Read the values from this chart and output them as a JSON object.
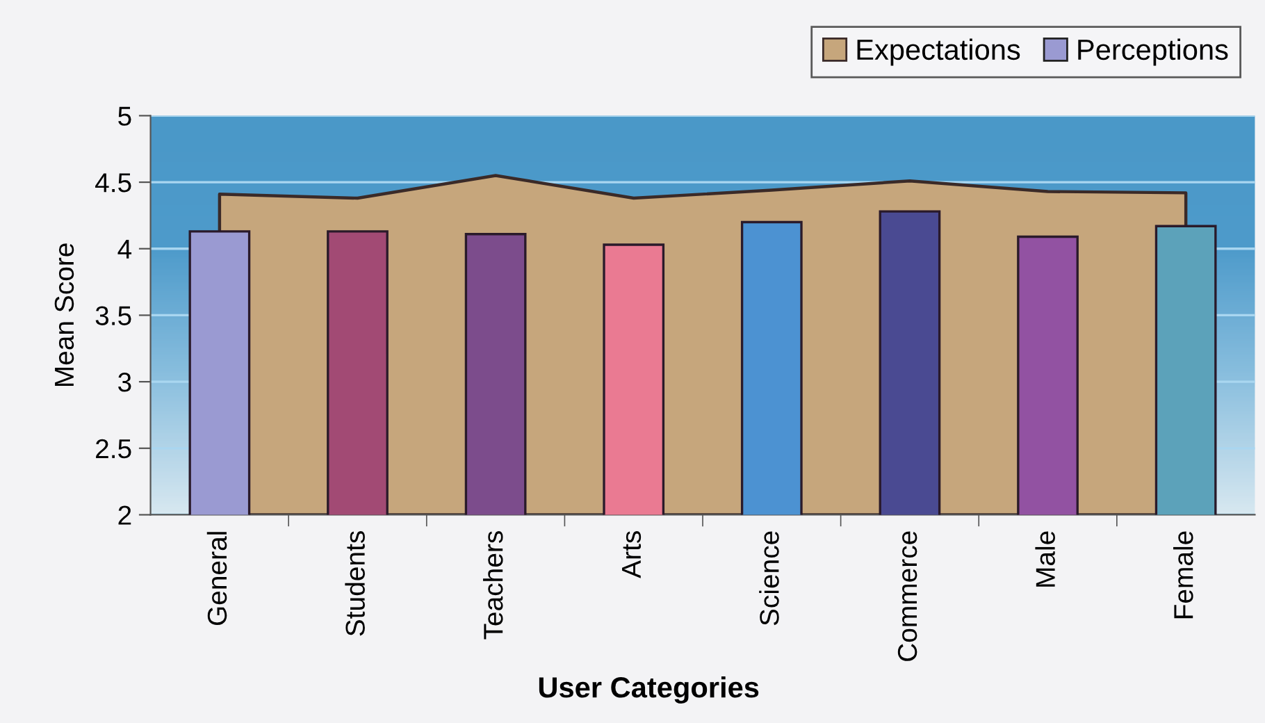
{
  "chart_data": {
    "type": "bar",
    "categories": [
      "General",
      "Students",
      "Teachers",
      "Arts",
      "Science",
      "Commerce",
      "Male",
      "Female"
    ],
    "series": [
      {
        "name": "Expectations",
        "type": "area",
        "color": "#c6a67c",
        "values": [
          4.41,
          4.38,
          4.55,
          4.38,
          4.44,
          4.51,
          4.43,
          4.42
        ]
      },
      {
        "name": "Perceptions",
        "colors": [
          "#9a9ad2",
          "#a24a74",
          "#7c4c8c",
          "#ea7a92",
          "#4c92d2",
          "#4a4a92",
          "#9252a2",
          "#5ca2ba"
        ],
        "values": [
          4.13,
          4.13,
          4.11,
          4.03,
          4.2,
          4.28,
          4.09,
          4.17
        ]
      }
    ],
    "xlabel": "User Categories",
    "ylabel": "Mean Score",
    "ylim": [
      2,
      5
    ],
    "yticks": [
      2,
      2.5,
      3,
      3.5,
      4,
      4.5,
      5
    ],
    "grid": "y",
    "legend": "top right"
  }
}
